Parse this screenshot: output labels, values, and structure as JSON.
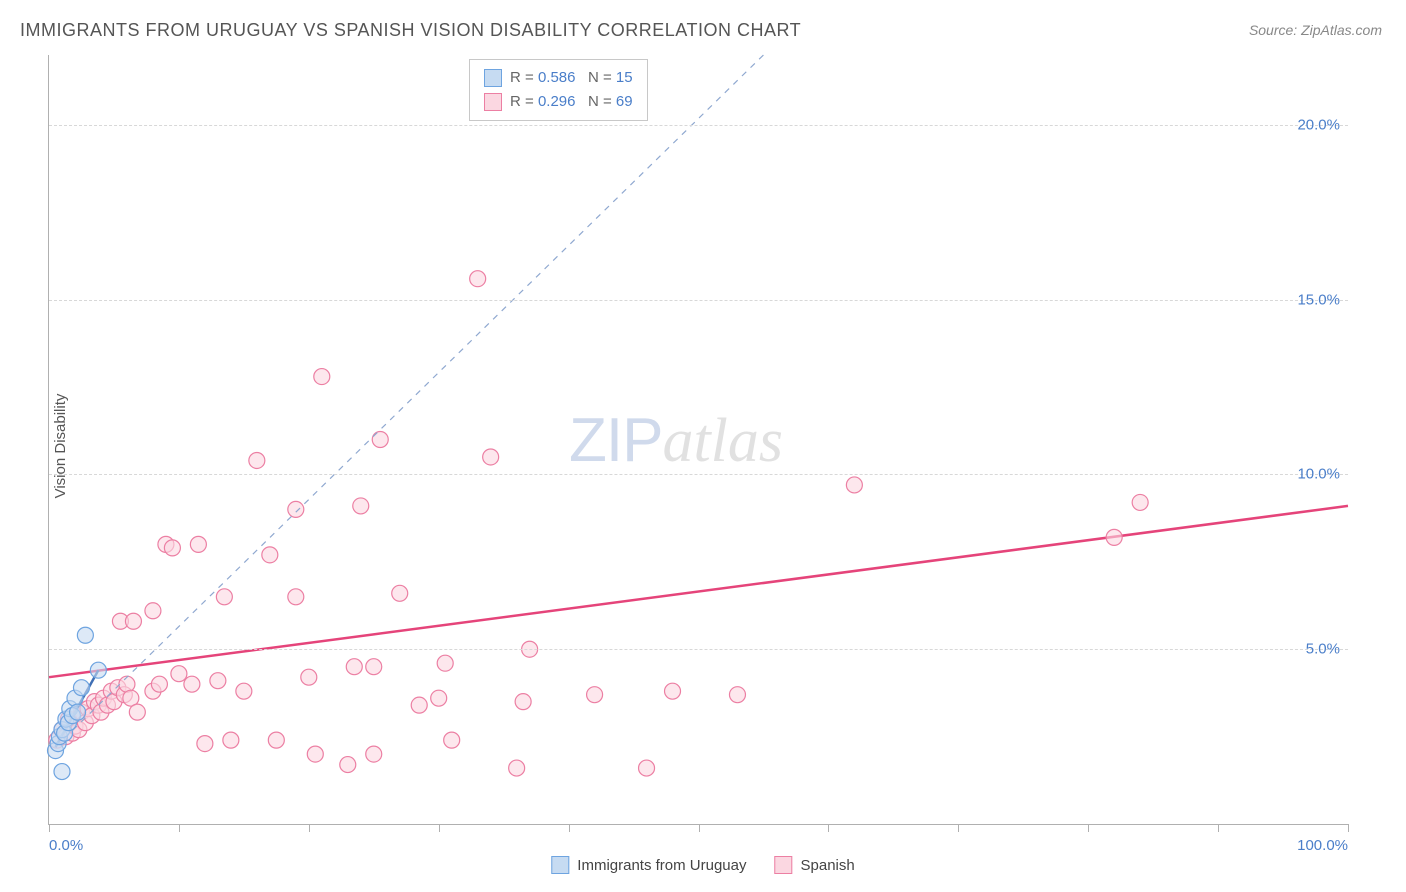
{
  "title": "IMMIGRANTS FROM URUGUAY VS SPANISH VISION DISABILITY CORRELATION CHART",
  "source_label": "Source: ZipAtlas.com",
  "ylabel": "Vision Disability",
  "watermark": {
    "zip": "ZIP",
    "atlas": "atlas"
  },
  "chart": {
    "type": "scatter",
    "xlim": [
      0,
      100
    ],
    "ylim": [
      0,
      22
    ],
    "x_ticks": [
      0,
      10,
      20,
      30,
      40,
      50,
      60,
      70,
      80,
      90,
      100
    ],
    "x_tick_labels": {
      "0": "0.0%",
      "100": "100.0%"
    },
    "y_gridlines": [
      5,
      10,
      15,
      20
    ],
    "y_tick_labels": {
      "5": "5.0%",
      "10": "10.0%",
      "15": "15.0%",
      "20": "20.0%"
    },
    "background": "#ffffff",
    "grid_color": "#d8d8d8",
    "axis_color": "#b0b0b0",
    "tick_label_color": "#4a7ec9",
    "marker_radius": 8,
    "marker_stroke_width": 1.2,
    "trend_line_width": 2.5,
    "trend_dashed_width": 1.2,
    "series": [
      {
        "name": "Immigrants from Uruguay",
        "R": 0.586,
        "N": 15,
        "fill_color": "#c6dbf2",
        "stroke_color": "#6ea4e0",
        "trend_color": "#3f6fb5",
        "trend_dashed_color": "#8fa8d0",
        "trend": {
          "x1": 0.5,
          "y1": 2.2,
          "x2": 3.8,
          "y2": 4.4
        },
        "trend_dashed": {
          "x1": 0.5,
          "y1": 2.2,
          "x2": 55,
          "y2": 22
        },
        "points": [
          [
            0.5,
            2.1
          ],
          [
            0.7,
            2.3
          ],
          [
            0.8,
            2.5
          ],
          [
            1.0,
            2.7
          ],
          [
            1.2,
            2.6
          ],
          [
            1.3,
            3.0
          ],
          [
            1.5,
            2.9
          ],
          [
            1.6,
            3.3
          ],
          [
            1.8,
            3.1
          ],
          [
            2.0,
            3.6
          ],
          [
            2.2,
            3.2
          ],
          [
            2.5,
            3.9
          ],
          [
            1.0,
            1.5
          ],
          [
            2.8,
            5.4
          ],
          [
            3.8,
            4.4
          ]
        ]
      },
      {
        "name": "Spanish",
        "R": 0.296,
        "N": 69,
        "fill_color": "#fbd7e1",
        "stroke_color": "#ec7fa3",
        "trend_color": "#e5447a",
        "trend": {
          "x1": 0,
          "y1": 4.2,
          "x2": 100,
          "y2": 9.1
        },
        "points": [
          [
            0.6,
            2.4
          ],
          [
            1.0,
            2.7
          ],
          [
            1.3,
            2.5
          ],
          [
            1.5,
            3.0
          ],
          [
            1.8,
            2.6
          ],
          [
            2.0,
            2.8
          ],
          [
            2.3,
            2.7
          ],
          [
            2.5,
            3.2
          ],
          [
            2.8,
            2.9
          ],
          [
            3.0,
            3.3
          ],
          [
            3.3,
            3.1
          ],
          [
            3.5,
            3.5
          ],
          [
            3.8,
            3.4
          ],
          [
            4.0,
            3.2
          ],
          [
            4.2,
            3.6
          ],
          [
            4.5,
            3.4
          ],
          [
            4.8,
            3.8
          ],
          [
            5.0,
            3.5
          ],
          [
            5.3,
            3.9
          ],
          [
            5.5,
            5.8
          ],
          [
            5.8,
            3.7
          ],
          [
            6.0,
            4.0
          ],
          [
            6.3,
            3.6
          ],
          [
            6.5,
            5.8
          ],
          [
            6.8,
            3.2
          ],
          [
            8.0,
            6.1
          ],
          [
            8.0,
            3.8
          ],
          [
            8.5,
            4.0
          ],
          [
            9.0,
            8.0
          ],
          [
            9.5,
            7.9
          ],
          [
            10.0,
            4.3
          ],
          [
            11.0,
            4.0
          ],
          [
            11.5,
            8.0
          ],
          [
            12.0,
            2.3
          ],
          [
            13.0,
            4.1
          ],
          [
            13.5,
            6.5
          ],
          [
            14.0,
            2.4
          ],
          [
            15.0,
            3.8
          ],
          [
            16.0,
            10.4
          ],
          [
            17.0,
            7.7
          ],
          [
            17.5,
            2.4
          ],
          [
            19.0,
            9.0
          ],
          [
            19.0,
            6.5
          ],
          [
            20.0,
            4.2
          ],
          [
            20.5,
            2.0
          ],
          [
            21.0,
            12.8
          ],
          [
            23.0,
            1.7
          ],
          [
            23.5,
            4.5
          ],
          [
            24.0,
            9.1
          ],
          [
            25.0,
            4.5
          ],
          [
            25.0,
            2.0
          ],
          [
            25.5,
            11.0
          ],
          [
            27.0,
            6.6
          ],
          [
            28.5,
            3.4
          ],
          [
            30.0,
            3.6
          ],
          [
            30.5,
            4.6
          ],
          [
            31.0,
            2.4
          ],
          [
            33.0,
            15.6
          ],
          [
            34.0,
            10.5
          ],
          [
            36.0,
            1.6
          ],
          [
            36.5,
            3.5
          ],
          [
            37.0,
            5.0
          ],
          [
            42.0,
            3.7
          ],
          [
            46.0,
            1.6
          ],
          [
            48.0,
            3.8
          ],
          [
            53.0,
            3.7
          ],
          [
            62.0,
            9.7
          ],
          [
            82.0,
            8.2
          ],
          [
            84.0,
            9.2
          ]
        ]
      }
    ]
  },
  "legend_box": {
    "rows": [
      {
        "swatch_fill": "#c6dbf2",
        "swatch_stroke": "#6ea4e0",
        "R": "0.586",
        "N": "15"
      },
      {
        "swatch_fill": "#fbd7e1",
        "swatch_stroke": "#ec7fa3",
        "R": "0.296",
        "N": "69"
      }
    ]
  },
  "legend_bottom": [
    {
      "swatch_fill": "#c6dbf2",
      "swatch_stroke": "#6ea4e0",
      "label": "Immigrants from Uruguay"
    },
    {
      "swatch_fill": "#fbd7e1",
      "swatch_stroke": "#ec7fa3",
      "label": "Spanish"
    }
  ]
}
